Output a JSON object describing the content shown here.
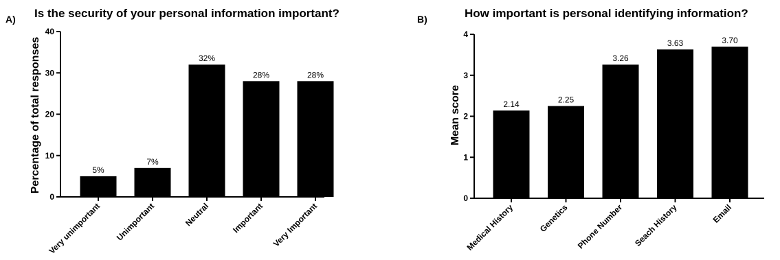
{
  "chart_data": [
    {
      "type": "bar",
      "panel_label": "A)",
      "title": "Is the security of your personal information important?",
      "xlabel": "",
      "ylabel": "Percentage of total responses",
      "ylim": [
        0,
        40
      ],
      "yticks": [
        "0",
        "10",
        "20",
        "30",
        "40"
      ],
      "categories": [
        "Very unimportant",
        "Unimportant",
        "Neutral",
        "Important",
        "Very Important"
      ],
      "values": [
        5,
        7,
        32,
        28,
        28
      ],
      "data_labels": [
        "5%",
        "7%",
        "32%",
        "28%",
        "28%"
      ],
      "bar_color": "#000000",
      "grid": false,
      "legend": "none"
    },
    {
      "type": "bar",
      "panel_label": "B)",
      "title": "How important is personal identifying information?",
      "xlabel": "",
      "ylabel": "Mean score",
      "ylim": [
        0,
        4
      ],
      "yticks": [
        "0",
        "1",
        "2",
        "3",
        "4"
      ],
      "categories": [
        "Medical History",
        "Genetics",
        "Phone Number",
        "Seach History",
        "Email"
      ],
      "values": [
        2.14,
        2.25,
        3.26,
        3.63,
        3.7
      ],
      "data_labels": [
        "2.14",
        "2.25",
        "3.26",
        "3.63",
        "3.70"
      ],
      "bar_color": "#000000",
      "grid": false,
      "legend": "none"
    }
  ]
}
